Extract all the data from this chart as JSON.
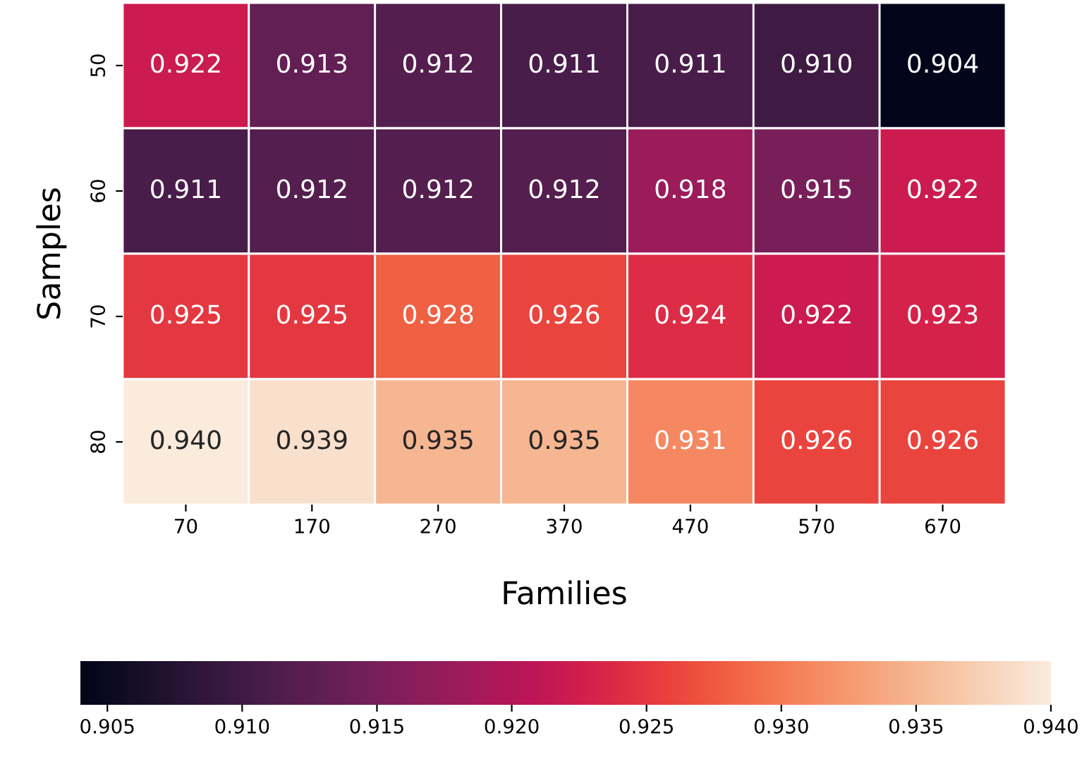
{
  "chart_data": {
    "type": "heatmap",
    "xlabel": "Families",
    "ylabel": "Samples",
    "categories": [
      "70",
      "170",
      "270",
      "370",
      "470",
      "570",
      "670"
    ],
    "y_categories": [
      "50",
      "60",
      "70",
      "80"
    ],
    "cells": [
      [
        0.922,
        0.913,
        0.912,
        0.911,
        0.911,
        0.91,
        0.904
      ],
      [
        0.911,
        0.912,
        0.912,
        0.912,
        0.918,
        0.915,
        0.922
      ],
      [
        0.925,
        0.925,
        0.928,
        0.926,
        0.924,
        0.922,
        0.923
      ],
      [
        0.94,
        0.939,
        0.935,
        0.935,
        0.931,
        0.926,
        0.926
      ]
    ],
    "cell_labels": [
      [
        "0.922",
        "0.913",
        "0.912",
        "0.911",
        "0.911",
        "0.910",
        "0.904"
      ],
      [
        "0.911",
        "0.912",
        "0.912",
        "0.912",
        "0.918",
        "0.915",
        "0.922"
      ],
      [
        "0.925",
        "0.925",
        "0.928",
        "0.926",
        "0.924",
        "0.922",
        "0.923"
      ],
      [
        "0.940",
        "0.939",
        "0.935",
        "0.935",
        "0.931",
        "0.926",
        "0.926"
      ]
    ],
    "clim": [
      0.904,
      0.94
    ],
    "cticks": [
      {
        "value": 0.905,
        "label": "0.905"
      },
      {
        "value": 0.91,
        "label": "0.910"
      },
      {
        "value": 0.915,
        "label": "0.915"
      },
      {
        "value": 0.92,
        "label": "0.920"
      },
      {
        "value": 0.925,
        "label": "0.925"
      },
      {
        "value": 0.93,
        "label": "0.930"
      },
      {
        "value": 0.935,
        "label": "0.935"
      },
      {
        "value": 0.94,
        "label": "0.940"
      }
    ]
  }
}
